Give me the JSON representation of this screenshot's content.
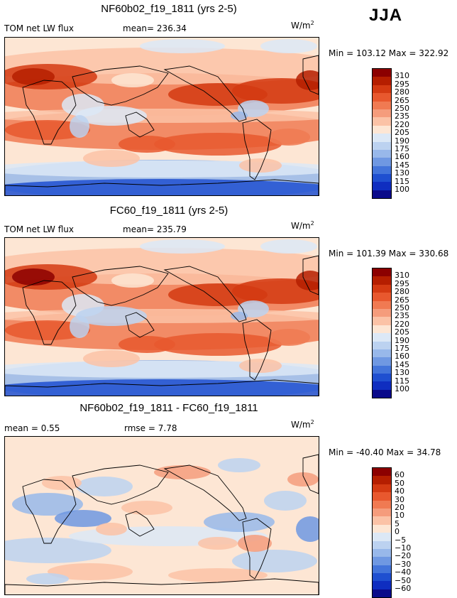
{
  "season": "JJA",
  "units_base": "W/m",
  "units_exp": "2",
  "panels": [
    {
      "title": "NF60b02_f19_1811 (yrs 2-5)",
      "left_label": "TOM net LW flux",
      "stat_label": "mean=",
      "stat_value": "236.34",
      "minmax": "Min = 103.12 Max = 322.92",
      "levels": [
        "310",
        "295",
        "280",
        "265",
        "250",
        "235",
        "220",
        "205",
        "190",
        "175",
        "160",
        "145",
        "130",
        "115",
        "100"
      ]
    },
    {
      "title": "FC60_f19_1811 (yrs 2-5)",
      "left_label": "TOM net LW flux",
      "stat_label": "mean=",
      "stat_value": "235.79",
      "minmax": "Min = 101.39 Max = 330.68",
      "levels": [
        "310",
        "295",
        "280",
        "265",
        "250",
        "235",
        "220",
        "205",
        "190",
        "175",
        "160",
        "145",
        "130",
        "115",
        "100"
      ]
    },
    {
      "title": "NF60b02_f19_1811 - FC60_f19_1811",
      "left_label": "mean =   0.55",
      "stat_label": "rmse =",
      "stat_value": "7.78",
      "minmax": "Min = -40.40 Max =  34.78",
      "levels": [
        "60",
        "50",
        "40",
        "30",
        "20",
        "10",
        "5",
        "0",
        "−5",
        "−10",
        "−20",
        "−30",
        "−40",
        "−50",
        "−60"
      ]
    }
  ],
  "colors": {
    "absolute_scale": [
      "#8c0000",
      "#b51e00",
      "#d43a12",
      "#e8582e",
      "#f07a52",
      "#f59c7c",
      "#fbc2a6",
      "#fde6d4",
      "#dce8f6",
      "#bcd2f0",
      "#98b8ea",
      "#6f98e2",
      "#4374da",
      "#1f4fd0",
      "#0f2ec0",
      "#0a0a8a"
    ],
    "diff_scale": [
      "#8c0000",
      "#b51e00",
      "#d43a12",
      "#e8582e",
      "#f07a52",
      "#f59c7c",
      "#fbc2a6",
      "#fde6d4",
      "#dce8f6",
      "#bcd2f0",
      "#98b8ea",
      "#6f98e2",
      "#4374da",
      "#1f4fd0",
      "#0f2ec0",
      "#0a0a8a"
    ]
  }
}
